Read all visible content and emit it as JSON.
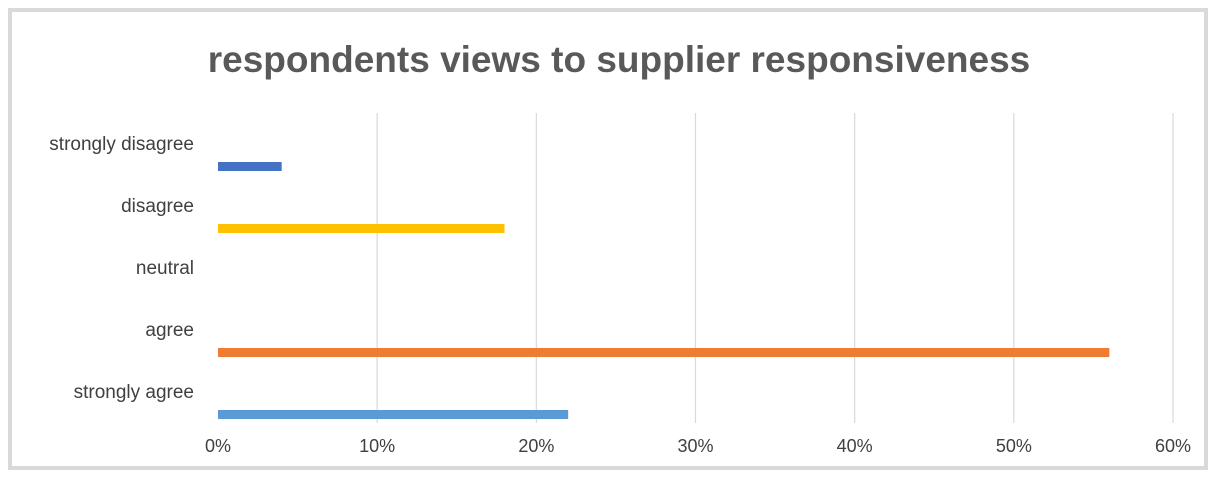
{
  "chart_data": {
    "type": "bar",
    "orientation": "horizontal",
    "title": "respondents views to supplier responsiveness",
    "categories": [
      "strongly disagree",
      "disagree",
      "neutral",
      "agree",
      "strongly agree"
    ],
    "values": [
      4,
      18,
      0,
      56,
      22
    ],
    "unit": "%",
    "bar_colors": [
      "#4472c4",
      "#ffc000",
      "#a5a5a5",
      "#ed7d31",
      "#5b9bd5"
    ],
    "xlim": [
      0,
      60
    ],
    "x_ticks": [
      "0%",
      "10%",
      "20%",
      "30%",
      "40%",
      "50%",
      "60%"
    ],
    "grid": true,
    "legend": "none"
  }
}
